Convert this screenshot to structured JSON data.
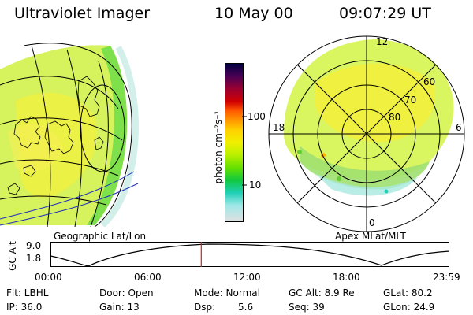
{
  "header": {
    "instrument": "Ultraviolet Imager",
    "date": "10 May 00",
    "time": "09:07:29 UT"
  },
  "colorbar": {
    "unit_label": "photon cm⁻²s⁻¹",
    "ticks": [
      "100",
      "10"
    ],
    "colors": [
      "#000040",
      "#4b0054",
      "#9a0030",
      "#d10000",
      "#ff5a00",
      "#ff9800",
      "#ffd000",
      "#f0f000",
      "#b8f000",
      "#66e000",
      "#10c840",
      "#20d0b8",
      "#a0e8e8",
      "#e0e0e0"
    ]
  },
  "panels": {
    "left_label": "Geographic Lat/Lon",
    "right_label": "Apex MLat/MLT",
    "polar_lat_labels": [
      "60",
      "70",
      "80"
    ],
    "polar_mlt_labels": [
      "12",
      "18",
      "6",
      "0"
    ]
  },
  "alt_plot": {
    "ylabel": "GC Alt",
    "y_ticks": [
      "9.0",
      "1.8"
    ],
    "x_ticks": [
      "00:00",
      "06:00",
      "12:00",
      "18:00",
      "23:59"
    ],
    "current_time_fraction": 0.378
  },
  "info": {
    "row1": [
      "Flt: LBHL",
      "Door: Open",
      "Mode: Normal",
      "GC Alt: 8.9 Re",
      "GLat: 80.2"
    ],
    "row2": [
      "IP: 36.0",
      "Gain: 13",
      "Dsp:",
      "5.6",
      "Seq: 39",
      "GLon: 24.9"
    ]
  }
}
